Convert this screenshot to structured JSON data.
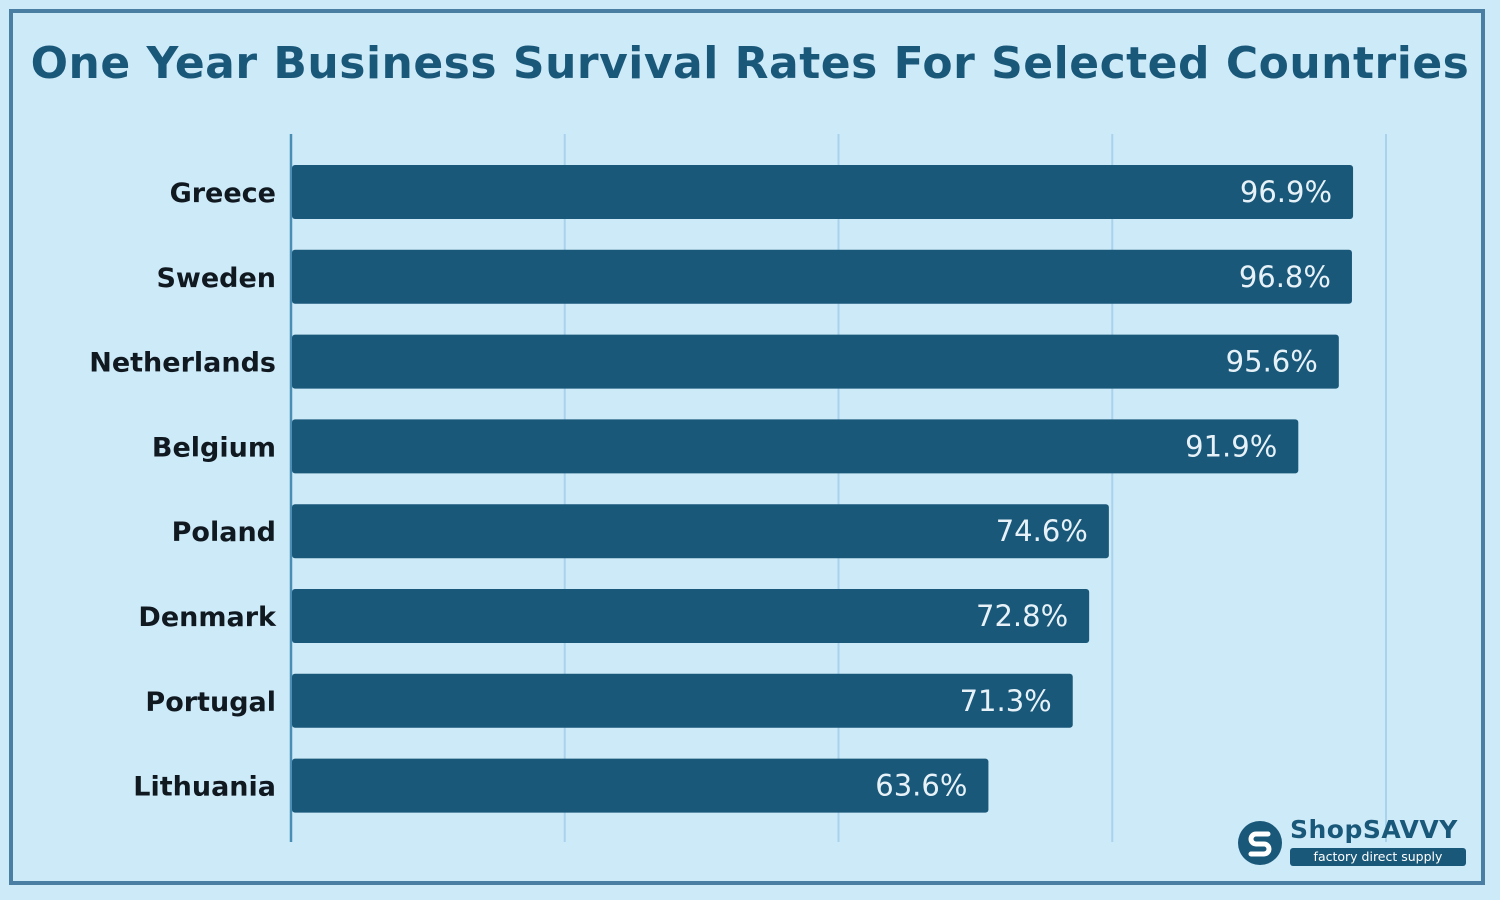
{
  "chart_data": {
    "type": "bar",
    "orientation": "horizontal",
    "title": "One Year Business Survival Rates For Selected Countries",
    "categories": [
      "Greece",
      "Sweden",
      "Netherlands",
      "Belgium",
      "Poland",
      "Denmark",
      "Portugal",
      "Lithuania"
    ],
    "values": [
      96.9,
      96.8,
      95.6,
      91.9,
      74.6,
      72.8,
      71.3,
      63.6
    ],
    "value_labels": [
      "96.9%",
      "96.8%",
      "95.6%",
      "91.9%",
      "74.6%",
      "72.8%",
      "71.3%",
      "63.6%"
    ],
    "xlim": [
      0,
      100
    ],
    "grid": true,
    "bar_color": "#1a587a",
    "grid_color": "#a9d3ec"
  },
  "branding": {
    "logo_name": "ShopSAVVY",
    "tagline": "factory direct supply",
    "logo_color": "#1a587a"
  }
}
